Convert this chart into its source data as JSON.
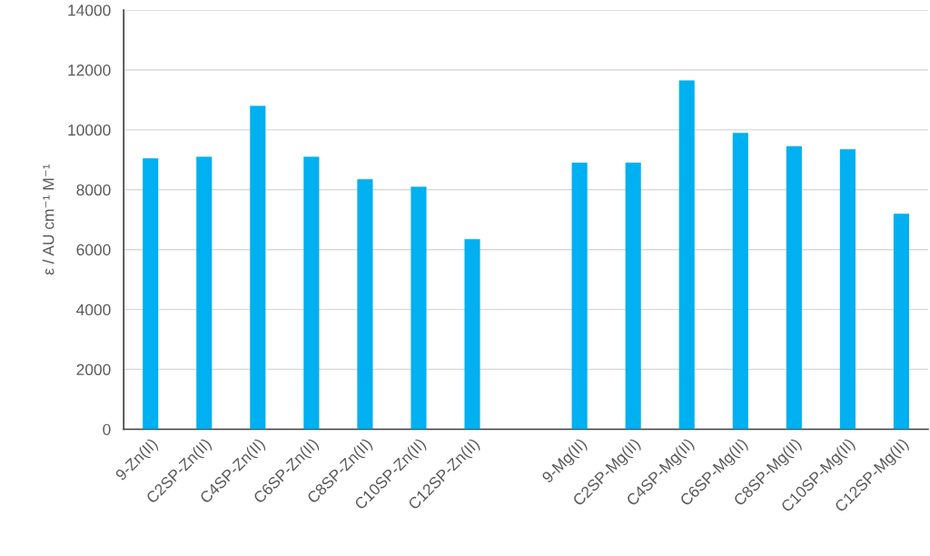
{
  "chart_data": {
    "type": "bar",
    "ylabel": "ε / AU cm⁻¹ M⁻¹",
    "categories": [
      "9-Zn(II)",
      "C2SP-Zn(II)",
      "C4SP-Zn(II)",
      "C6SP-Zn(II)",
      "C8SP-Zn(II)",
      "C10SP-Zn(II)",
      "C12SP-Zn(II)",
      null,
      "9-Mg(II)",
      "C2SP-Mg(II)",
      "C4SP-Mg(II)",
      "C6SP-Mg(II)",
      "C8SP-Mg(II)",
      "C10SP-Mg(II)",
      "C12SP-Mg(II)"
    ],
    "values": [
      9050,
      9100,
      10800,
      9100,
      8350,
      8100,
      6350,
      null,
      8900,
      8900,
      11650,
      9900,
      9450,
      9350,
      7200
    ],
    "color": "#00b0f0",
    "ylim": [
      0,
      14000
    ],
    "yticks": [
      0,
      2000,
      4000,
      6000,
      8000,
      10000,
      12000,
      14000
    ],
    "grid": "y",
    "legend": false
  }
}
